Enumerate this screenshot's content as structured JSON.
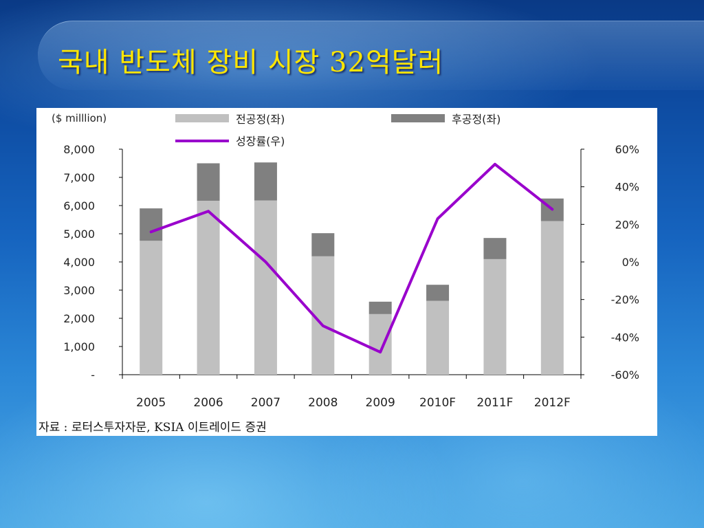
{
  "slide": {
    "title": "국내 반도체 장비 시장 32억달러",
    "source": "자료 : 로터스투자자문, KSIA 이트레이드 증권"
  },
  "colors": {
    "front_end": "#c0c0c0",
    "back_end": "#808080",
    "growth_line": "#9900cc",
    "title": "#ffe600"
  },
  "chart_data": {
    "type": "bar",
    "stacked": true,
    "unit_label": "($ milllion)",
    "categories": [
      "2005",
      "2006",
      "2007",
      "2008",
      "2009",
      "2010F",
      "2011F",
      "2012F"
    ],
    "series": [
      {
        "name": "전공정(좌)",
        "axis": "left",
        "type": "bar",
        "values": [
          4750,
          6170,
          6180,
          4200,
          2150,
          2620,
          4100,
          5450
        ]
      },
      {
        "name": "후공정(좌)",
        "axis": "left",
        "type": "bar",
        "values": [
          1150,
          1330,
          1350,
          820,
          440,
          570,
          750,
          800
        ]
      },
      {
        "name": "성장률(우)",
        "axis": "right",
        "type": "line",
        "values": [
          16,
          27,
          0,
          -34,
          -48,
          23,
          52,
          28
        ]
      }
    ],
    "left_axis": {
      "ylim": [
        0,
        8000
      ],
      "ticks": [
        0,
        1000,
        2000,
        3000,
        4000,
        5000,
        6000,
        7000,
        8000
      ],
      "tick_labels": [
        "-",
        "1,000",
        "2,000",
        "3,000",
        "4,000",
        "5,000",
        "6,000",
        "7,000",
        "8,000"
      ]
    },
    "right_axis": {
      "ylim": [
        -60,
        60
      ],
      "ticks": [
        -60,
        -40,
        -20,
        0,
        20,
        40,
        60
      ],
      "tick_labels": [
        "-60%",
        "-40%",
        "-20%",
        "0%",
        "20%",
        "40%",
        "60%"
      ]
    },
    "legend_position": "top",
    "grid": false
  }
}
